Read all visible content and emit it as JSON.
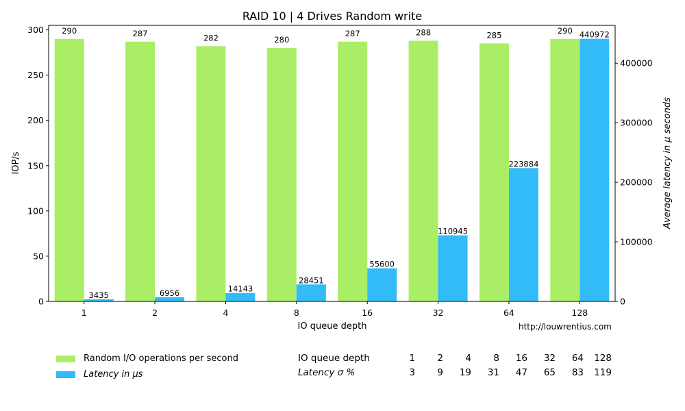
{
  "chart_data": {
    "type": "bar",
    "title": "RAID 10 | 4 Drives Random write",
    "xlabel": "IO queue depth",
    "ylabel": "IOP/s",
    "y2label": "Average latency in µ seconds",
    "categories": [
      "1",
      "2",
      "4",
      "8",
      "16",
      "32",
      "64",
      "128"
    ],
    "ylim": [
      0,
      305
    ],
    "y2lim": [
      0,
      463500
    ],
    "yticks": [
      0,
      50,
      100,
      150,
      200,
      250,
      300
    ],
    "y2ticks": [
      0,
      100000,
      200000,
      300000,
      400000
    ],
    "series": [
      {
        "name": "Random I/O operations per second",
        "axis": "left",
        "color": "#aaee66",
        "values": [
          290,
          287,
          282,
          280,
          287,
          288,
          285,
          290
        ]
      },
      {
        "name": "Latency in µs",
        "axis": "right",
        "color": "#33bbf8",
        "values": [
          3435,
          6956,
          14143,
          28451,
          55600,
          110945,
          223884,
          440972
        ]
      }
    ],
    "grid": false,
    "legend_position": "bottom-left"
  },
  "legend": {
    "iops_label": "Random I/O operations per second",
    "latency_label": "Latency in µs"
  },
  "source": "http://louwrentius.com",
  "stats_table": {
    "row1_label": "IO queue depth",
    "row1_values": [
      "1",
      "2",
      "4",
      "8",
      "16",
      "32",
      "64",
      "128"
    ],
    "row2_label": "Latency σ %",
    "row2_values": [
      "3",
      "9",
      "19",
      "31",
      "47",
      "65",
      "83",
      "119"
    ]
  }
}
